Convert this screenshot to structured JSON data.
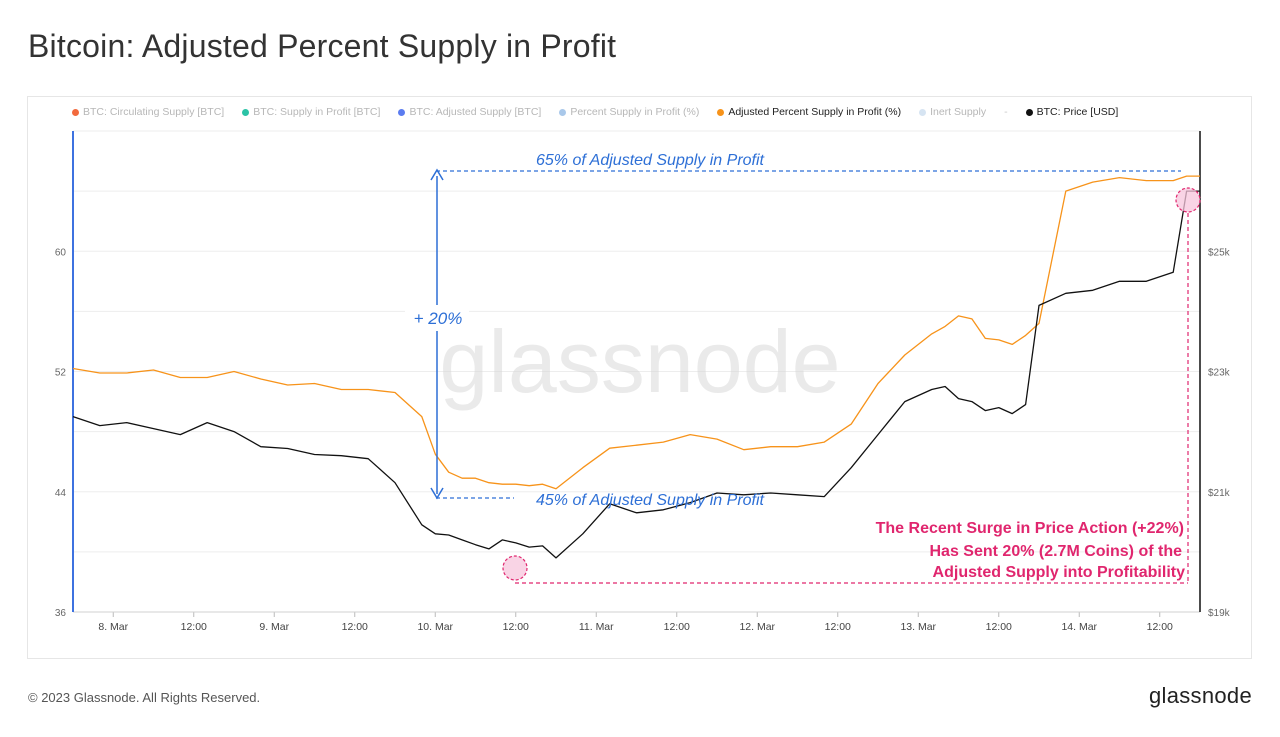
{
  "page": {
    "title": "Bitcoin: Adjusted Percent Supply in Profit",
    "copyright": "© 2023 Glassnode. All Rights Reserved.",
    "logo_text": "glassnode",
    "watermark": "glassnode"
  },
  "legend": {
    "items": [
      {
        "label": "BTC: Circulating Supply [BTC]",
        "color": "#f26a3d",
        "active": false
      },
      {
        "label": "BTC: Supply in Profit [BTC]",
        "color": "#2bc3a6",
        "active": false
      },
      {
        "label": "BTC: Adjusted Supply [BTC]",
        "color": "#5b7cf0",
        "active": false
      },
      {
        "label": "Percent Supply in Profit (%)",
        "color": "#a9c8ea",
        "active": false
      },
      {
        "label": "Adjusted Percent Supply in Profit (%)",
        "color": "#f7931a",
        "active": true
      },
      {
        "label": "Inert Supply",
        "color": "#d6e4f2",
        "active": false
      },
      {
        "label": "BTC: Price [USD]",
        "color": "#111111",
        "active": true
      }
    ],
    "separator": "-"
  },
  "annotations": {
    "top_label": "65% of Adjusted Supply in Profit",
    "bottom_label": "45% of Adjusted Supply in Profit",
    "delta_label": "+ 20%",
    "surge_line1": "The Recent Surge in Price Action (+22%)",
    "surge_line2": "Has Sent 20% (2.7M Coins) of the",
    "surge_line3": "Adjusted Supply into Profitability"
  },
  "chart_data": {
    "type": "line",
    "title": "Bitcoin: Adjusted Percent Supply in Profit",
    "x_ticks": [
      "8. Mar",
      "12:00",
      "9. Mar",
      "12:00",
      "10. Mar",
      "12:00",
      "11. Mar",
      "12:00",
      "12. Mar",
      "12:00",
      "13. Mar",
      "12:00",
      "14. Mar",
      "12:00"
    ],
    "x_range_hours": [
      0,
      168
    ],
    "y_left": {
      "ticks": [
        "36",
        "44",
        "52",
        "60"
      ],
      "range": [
        36,
        68
      ]
    },
    "y_right": {
      "ticks": [
        "$19k",
        "$21k",
        "$23k",
        "$25k"
      ],
      "range": [
        19000,
        27000
      ]
    },
    "series": [
      {
        "name": "Adjusted Percent Supply in Profit (%)",
        "color": "#f7931a",
        "axis": "left",
        "x_hours": [
          0,
          4,
          8,
          12,
          16,
          20,
          24,
          28,
          32,
          36,
          40,
          44,
          48,
          52,
          54,
          56,
          58,
          60,
          62,
          64,
          66,
          68,
          70,
          72,
          76,
          80,
          84,
          88,
          92,
          96,
          100,
          104,
          108,
          112,
          116,
          120,
          124,
          128,
          130,
          132,
          134,
          136,
          138,
          140,
          142,
          144,
          148,
          152,
          156,
          160,
          164,
          166,
          168
        ],
        "values": [
          52.2,
          51.9,
          51.9,
          52.1,
          51.6,
          51.6,
          52.0,
          51.5,
          51.1,
          51.2,
          50.8,
          50.8,
          50.6,
          49.0,
          46.5,
          45.3,
          44.9,
          44.9,
          44.6,
          44.5,
          44.5,
          44.4,
          44.5,
          44.2,
          45.6,
          46.9,
          47.1,
          47.3,
          47.8,
          47.5,
          46.8,
          47.0,
          47.0,
          47.3,
          48.5,
          51.2,
          53.1,
          54.5,
          55.0,
          55.7,
          55.5,
          54.2,
          54.1,
          53.8,
          54.4,
          55.2,
          64.0,
          64.6,
          64.9,
          64.7,
          64.7,
          65.0,
          65.0
        ]
      },
      {
        "name": "BTC: Price [USD]",
        "color": "#111111",
        "axis": "right",
        "x_hours": [
          0,
          4,
          8,
          12,
          16,
          20,
          24,
          28,
          32,
          36,
          40,
          44,
          48,
          52,
          54,
          56,
          58,
          60,
          62,
          64,
          66,
          68,
          70,
          72,
          76,
          80,
          84,
          88,
          92,
          96,
          100,
          104,
          108,
          112,
          116,
          120,
          124,
          128,
          130,
          132,
          134,
          136,
          138,
          140,
          142,
          144,
          148,
          152,
          156,
          160,
          164,
          166,
          168
        ],
        "values": [
          22250,
          22100,
          22150,
          22050,
          21950,
          22150,
          22000,
          21750,
          21720,
          21620,
          21600,
          21550,
          21150,
          20450,
          20300,
          20280,
          20200,
          20120,
          20050,
          20200,
          20150,
          20080,
          20100,
          19900,
          20300,
          20800,
          20650,
          20700,
          20820,
          20980,
          20950,
          20980,
          20950,
          20920,
          21400,
          21950,
          22500,
          22700,
          22750,
          22550,
          22500,
          22350,
          22400,
          22300,
          22450,
          24100,
          24300,
          24350,
          24500,
          24500,
          24650,
          26000,
          26000
        ]
      }
    ]
  }
}
